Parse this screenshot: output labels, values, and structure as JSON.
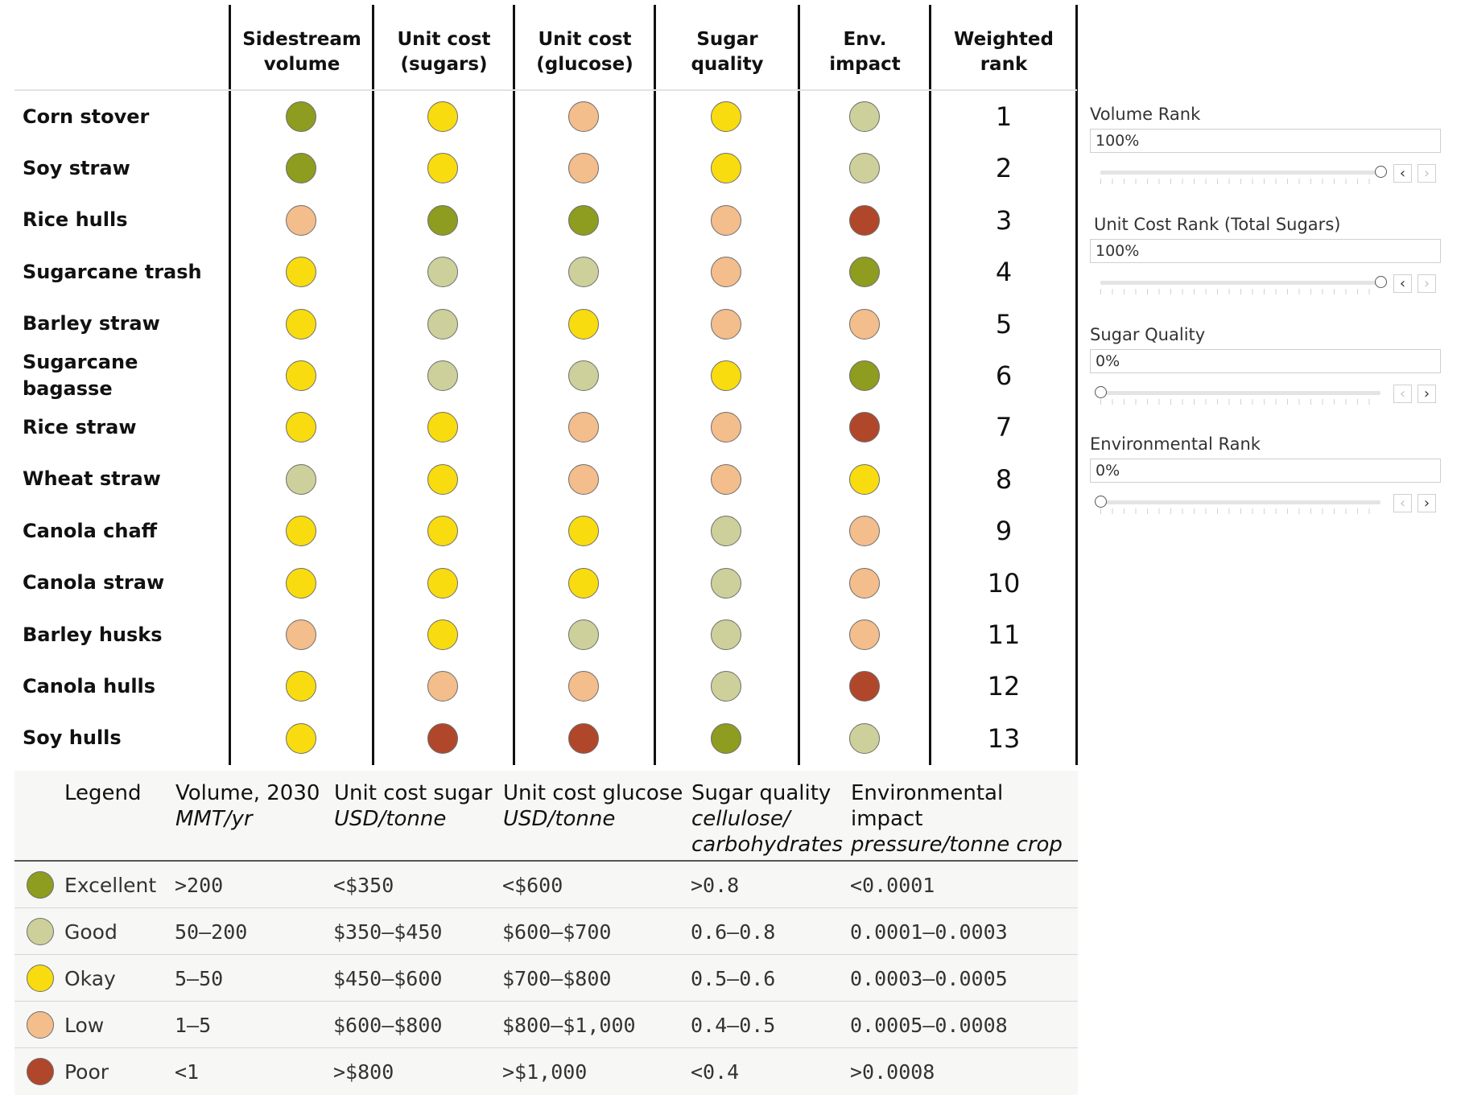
{
  "colors": {
    "excellent": "#8e9c1f",
    "good": "#cdd09a",
    "okay": "#f8dc0f",
    "low": "#f3bd8c",
    "poor": "#b0472a"
  },
  "columns": [
    "Sidestream\nvolume",
    "Unit cost\n(sugars)",
    "Unit cost\n(glucose)",
    "Sugar\nquality",
    "Env.\nimpact",
    "Weighted\nrank"
  ],
  "rows": [
    {
      "name": "Corn stover",
      "ratings": [
        "excellent",
        "okay",
        "low",
        "okay",
        "good"
      ],
      "rank": "1"
    },
    {
      "name": "Soy straw",
      "ratings": [
        "excellent",
        "okay",
        "low",
        "okay",
        "good"
      ],
      "rank": "2"
    },
    {
      "name": "Rice hulls",
      "ratings": [
        "low",
        "excellent",
        "excellent",
        "low",
        "poor"
      ],
      "rank": "3"
    },
    {
      "name": "Sugarcane trash",
      "ratings": [
        "okay",
        "good",
        "good",
        "low",
        "excellent"
      ],
      "rank": "4"
    },
    {
      "name": "Barley straw",
      "ratings": [
        "okay",
        "good",
        "okay",
        "low",
        "low"
      ],
      "rank": "5"
    },
    {
      "name": "Sugarcane\nbagasse",
      "ratings": [
        "okay",
        "good",
        "good",
        "okay",
        "excellent"
      ],
      "rank": "6"
    },
    {
      "name": "Rice straw",
      "ratings": [
        "okay",
        "okay",
        "low",
        "low",
        "poor"
      ],
      "rank": "7"
    },
    {
      "name": "Wheat straw",
      "ratings": [
        "good",
        "okay",
        "low",
        "low",
        "okay"
      ],
      "rank": "8"
    },
    {
      "name": "Canola chaff",
      "ratings": [
        "okay",
        "okay",
        "okay",
        "good",
        "low"
      ],
      "rank": "9"
    },
    {
      "name": "Canola straw",
      "ratings": [
        "okay",
        "okay",
        "okay",
        "good",
        "low"
      ],
      "rank": "10"
    },
    {
      "name": "Barley husks",
      "ratings": [
        "low",
        "okay",
        "good",
        "good",
        "low"
      ],
      "rank": "11"
    },
    {
      "name": "Canola hulls",
      "ratings": [
        "okay",
        "low",
        "low",
        "good",
        "poor"
      ],
      "rank": "12"
    },
    {
      "name": "Soy hulls",
      "ratings": [
        "okay",
        "poor",
        "poor",
        "excellent",
        "good"
      ],
      "rank": "13"
    }
  ],
  "legend": {
    "title": "Legend",
    "headers": [
      {
        "title": "Volume, 2030",
        "subtitle": "MMT/yr"
      },
      {
        "title": "Unit cost sugar",
        "subtitle": "USD/tonne"
      },
      {
        "title": "Unit cost glucose",
        "subtitle": "USD/tonne"
      },
      {
        "title": "Sugar quality",
        "subtitle": "cellulose/\ncarbohydrates"
      },
      {
        "title": "Environmental impact",
        "subtitle": "pressure/tonne crop"
      }
    ],
    "rows": [
      {
        "level": "excellent",
        "label": "Excellent",
        "values": [
          ">200",
          "<$350",
          "<$600",
          ">0.8",
          "<0.0001"
        ]
      },
      {
        "level": "good",
        "label": "Good",
        "values": [
          "50–200",
          "$350–$450",
          "$600–$700",
          "0.6–0.8",
          "0.0001–0.0003"
        ]
      },
      {
        "level": "okay",
        "label": "Okay",
        "values": [
          "5–50",
          "$450–$600",
          "$700–$800",
          "0.5–0.6",
          "0.0003–0.0005"
        ]
      },
      {
        "level": "low",
        "label": "Low",
        "values": [
          "1–5",
          "$600–$800",
          "$800–$1,000",
          "0.4–0.5",
          "0.0005–0.0008"
        ]
      },
      {
        "level": "poor",
        "label": "Poor",
        "values": [
          "<1",
          ">$800",
          ">$1,000",
          "<0.4",
          ">0.0008"
        ]
      }
    ]
  },
  "controls": [
    {
      "title": "Volume Rank",
      "value": "100%",
      "weight": 1.0,
      "prev_disabled": false,
      "next_disabled": true
    },
    {
      "title": "Unit Cost Rank (Total Sugars)",
      "value": "100%",
      "weight": 1.0,
      "prev_disabled": false,
      "next_disabled": true
    },
    {
      "title": "Sugar Quality",
      "value": "0%",
      "weight": 0.0,
      "prev_disabled": true,
      "next_disabled": false
    },
    {
      "title": "Environmental Rank",
      "value": "0%",
      "weight": 0.0,
      "prev_disabled": true,
      "next_disabled": false
    }
  ],
  "icons": {
    "prev": "chevron-left-icon",
    "next": "chevron-right-icon",
    "prev_glyph": "‹",
    "next_glyph": "›"
  }
}
